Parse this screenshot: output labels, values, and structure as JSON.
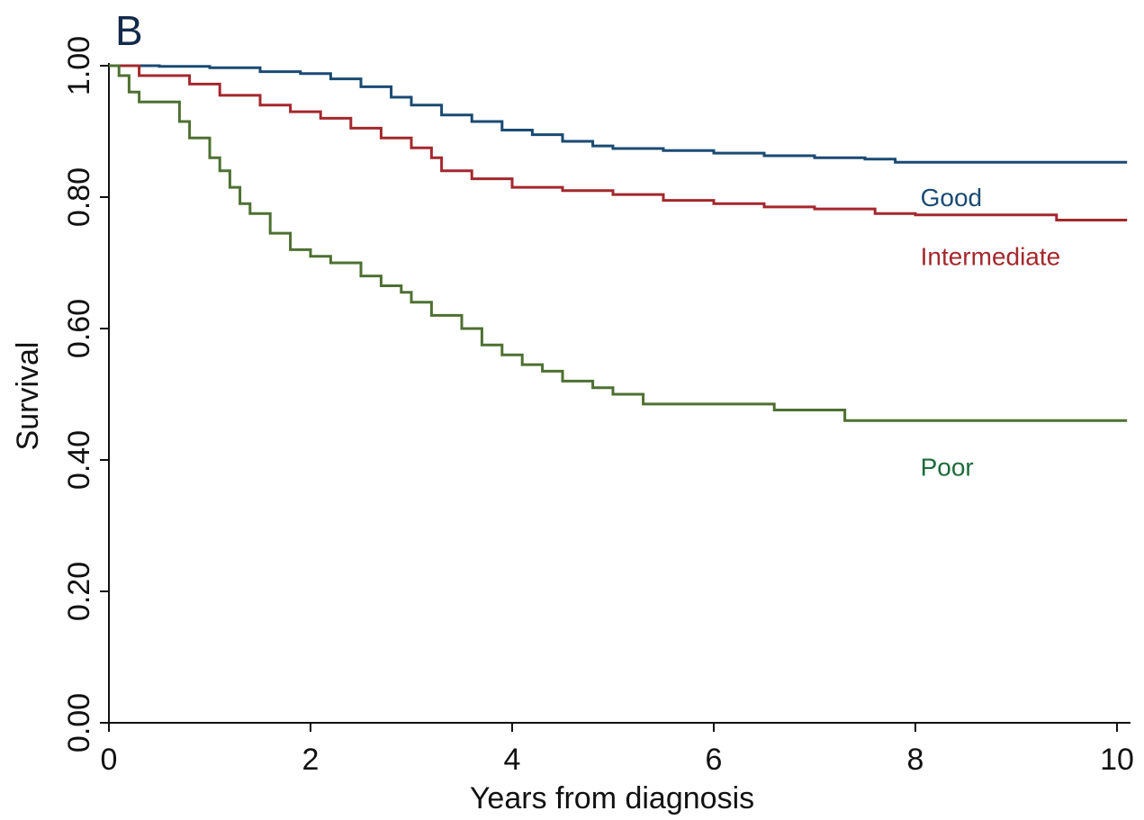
{
  "panel_label": "B",
  "chart_data": {
    "type": "line",
    "subtype": "kaplan-meier step",
    "xlabel": "Years from diagnosis",
    "ylabel": "Survival",
    "xlim": [
      0,
      10.1
    ],
    "ylim": [
      0,
      1
    ],
    "xticks": [
      0,
      2,
      4,
      6,
      8,
      10
    ],
    "xtick_labels": [
      "0",
      "2",
      "4",
      "6",
      "8",
      "10"
    ],
    "yticks": [
      0,
      0.2,
      0.4,
      0.6,
      0.8,
      1.0
    ],
    "ytick_labels": [
      "0.00",
      "0.20",
      "0.40",
      "0.60",
      "0.80",
      "1.00"
    ],
    "grid": false,
    "legend": "none (direct labels)",
    "series": [
      {
        "name": "Good",
        "color": "#1a4a72",
        "points": [
          [
            0,
            1.0
          ],
          [
            0.5,
            0.999
          ],
          [
            1.0,
            0.997
          ],
          [
            1.5,
            0.991
          ],
          [
            1.9,
            0.988
          ],
          [
            2.2,
            0.98
          ],
          [
            2.5,
            0.968
          ],
          [
            2.8,
            0.952
          ],
          [
            3.0,
            0.94
          ],
          [
            3.3,
            0.925
          ],
          [
            3.6,
            0.915
          ],
          [
            3.9,
            0.902
          ],
          [
            4.2,
            0.895
          ],
          [
            4.5,
            0.885
          ],
          [
            4.8,
            0.878
          ],
          [
            5.0,
            0.874
          ],
          [
            5.5,
            0.871
          ],
          [
            6.0,
            0.867
          ],
          [
            6.5,
            0.863
          ],
          [
            7.0,
            0.86
          ],
          [
            7.5,
            0.858
          ],
          [
            7.8,
            0.853
          ],
          [
            10.1,
            0.853
          ]
        ]
      },
      {
        "name": "Intermediate",
        "color": "#a3282d",
        "points": [
          [
            0,
            1.0
          ],
          [
            0.3,
            0.985
          ],
          [
            0.8,
            0.972
          ],
          [
            1.1,
            0.955
          ],
          [
            1.5,
            0.94
          ],
          [
            1.8,
            0.93
          ],
          [
            2.1,
            0.92
          ],
          [
            2.4,
            0.905
          ],
          [
            2.7,
            0.89
          ],
          [
            3.0,
            0.875
          ],
          [
            3.2,
            0.86
          ],
          [
            3.3,
            0.84
          ],
          [
            3.6,
            0.828
          ],
          [
            4.0,
            0.815
          ],
          [
            4.5,
            0.81
          ],
          [
            5.0,
            0.804
          ],
          [
            5.5,
            0.795
          ],
          [
            6.0,
            0.79
          ],
          [
            6.5,
            0.785
          ],
          [
            7.0,
            0.782
          ],
          [
            7.6,
            0.775
          ],
          [
            8.0,
            0.773
          ],
          [
            9.4,
            0.772
          ],
          [
            9.4,
            0.765
          ],
          [
            10.1,
            0.765
          ]
        ]
      },
      {
        "name": "Poor",
        "color": "#4e7032",
        "points": [
          [
            0,
            1.0
          ],
          [
            0.1,
            0.985
          ],
          [
            0.2,
            0.96
          ],
          [
            0.3,
            0.945
          ],
          [
            0.6,
            0.945
          ],
          [
            0.7,
            0.915
          ],
          [
            0.8,
            0.89
          ],
          [
            1.0,
            0.86
          ],
          [
            1.1,
            0.84
          ],
          [
            1.2,
            0.815
          ],
          [
            1.3,
            0.79
          ],
          [
            1.4,
            0.775
          ],
          [
            1.6,
            0.745
          ],
          [
            1.8,
            0.72
          ],
          [
            2.0,
            0.71
          ],
          [
            2.2,
            0.7
          ],
          [
            2.5,
            0.68
          ],
          [
            2.7,
            0.665
          ],
          [
            2.9,
            0.655
          ],
          [
            3.0,
            0.64
          ],
          [
            3.2,
            0.62
          ],
          [
            3.5,
            0.6
          ],
          [
            3.7,
            0.575
          ],
          [
            3.9,
            0.56
          ],
          [
            4.1,
            0.545
          ],
          [
            4.3,
            0.535
          ],
          [
            4.5,
            0.52
          ],
          [
            4.8,
            0.51
          ],
          [
            5.0,
            0.5
          ],
          [
            5.3,
            0.485
          ],
          [
            6.0,
            0.485
          ],
          [
            6.6,
            0.476
          ],
          [
            7.3,
            0.468
          ],
          [
            7.3,
            0.46
          ],
          [
            10.1,
            0.46
          ]
        ]
      }
    ],
    "annotations": [
      {
        "text": "Good",
        "x": 7.8,
        "y": 0.8,
        "color": "#1a4a72"
      },
      {
        "text": "Intermediate",
        "x": 7.8,
        "y": 0.71,
        "color": "#a3282d"
      },
      {
        "text": "Poor",
        "x": 7.8,
        "y": 0.39,
        "color": "#1d6b3c"
      }
    ]
  }
}
